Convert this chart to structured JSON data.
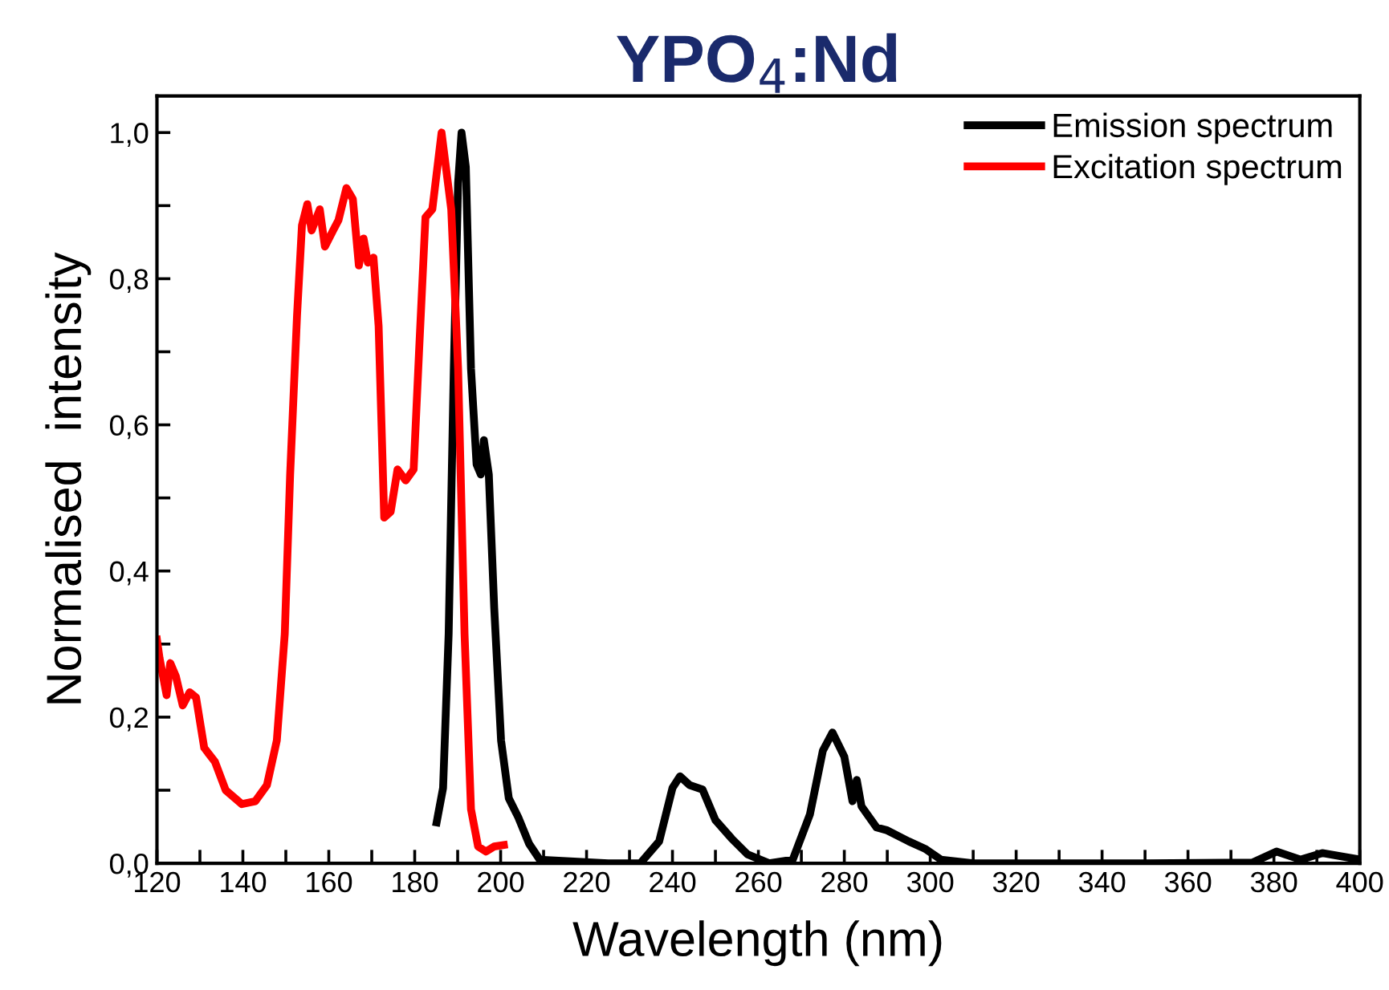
{
  "chart_data": {
    "type": "line",
    "title": "YPO$_{4}$:Nd",
    "xlabel": "Wavelength (nm)",
    "ylabel": "Normalised  intensity",
    "xlim": [
      120,
      400
    ],
    "xticks": [
      120,
      {
        "value": 130,
        "label": null
      },
      140,
      {
        "value": 150,
        "label": null
      },
      160,
      {
        "value": 170,
        "label": null
      },
      180,
      {
        "value": 190,
        "label": null
      },
      200,
      {
        "value": 210,
        "label": null
      },
      220,
      {
        "value": 230,
        "label": null
      },
      240,
      {
        "value": 250,
        "label": null
      },
      260,
      {
        "value": 270,
        "label": null
      },
      280,
      {
        "value": 290,
        "label": null
      },
      300,
      {
        "value": 310,
        "label": null
      },
      320,
      {
        "value": 330,
        "label": null
      },
      340,
      {
        "value": 350,
        "label": null
      },
      360,
      {
        "value": 370,
        "label": null
      },
      380,
      {
        "value": 390,
        "label": null
      },
      400
    ],
    "ylim": [
      0,
      1.05
    ],
    "yticks": [
      {
        "value": 0,
        "label": "0,0"
      },
      {
        "value": 0.1,
        "label": null
      },
      {
        "value": 0.2,
        "label": "0,2"
      },
      {
        "value": 0.3,
        "label": null
      },
      {
        "value": 0.4,
        "label": "0,4"
      },
      {
        "value": 0.5,
        "label": null
      },
      {
        "value": 0.6,
        "label": "0,6"
      },
      {
        "value": 0.7,
        "label": null
      },
      {
        "value": 0.8,
        "label": "0,8"
      },
      {
        "value": 0.9,
        "label": null
      },
      {
        "value": 1.0,
        "label": "1,0"
      }
    ],
    "grid": false,
    "legend": "top right",
    "marker": "none",
    "line_style": "solid",
    "series": [
      {
        "name": "Emission spectrum",
        "color": "#000000",
        "x": [
          185.1,
          186.6,
          187.9,
          189.1,
          190.1,
          190.9,
          191.9,
          193.1,
          194.4,
          195.4,
          196.1,
          197.25,
          198.5,
          200.1,
          201.9,
          204.1,
          206.6,
          209.1,
          225,
          232.5,
          236.9,
          240,
          241.75,
          244,
          247,
          250,
          253.75,
          257.5,
          262.5,
          268,
          272,
          275,
          277.25,
          280,
          281.9,
          282.9,
          284,
          287.5,
          290,
          295,
          298.75,
          302.5,
          310,
          325,
          350,
          375,
          380.6,
          386.25,
          391.25,
          400
        ],
        "values": [
          0.056,
          0.103,
          0.314,
          0.677,
          0.931,
          1.0,
          0.953,
          0.677,
          0.546,
          0.532,
          0.579,
          0.532,
          0.35,
          0.168,
          0.089,
          0.063,
          0.027,
          0.005,
          0,
          0,
          0.03,
          0.103,
          0.119,
          0.107,
          0.101,
          0.059,
          0.034,
          0.012,
          0,
          0.005,
          0.067,
          0.154,
          0.179,
          0.146,
          0.085,
          0.114,
          0.078,
          0.049,
          0.045,
          0.03,
          0.02,
          0.005,
          0,
          0,
          0,
          0.001,
          0.016,
          0.005,
          0.014,
          0.005
        ]
      },
      {
        "name": "Excitation spectrum",
        "color": "#ff0000",
        "x": [
          120,
          120.6,
          122.25,
          123.1,
          124.4,
          126,
          127.6,
          129.1,
          131,
          133.5,
          136,
          139.75,
          142.9,
          145.6,
          147.9,
          149.75,
          151,
          152.6,
          153.75,
          155,
          156,
          157.9,
          159.1,
          161,
          162.25,
          164.1,
          165.6,
          167,
          168.1,
          169.1,
          170.4,
          171.6,
          172.9,
          174.4,
          176,
          177.9,
          179.75,
          181,
          182.5,
          184.1,
          186.25,
          188.5,
          190.1,
          191.6,
          193.1,
          194.75,
          196.6,
          198.5,
          200.75
        ],
        "values": [
          0.306,
          0.281,
          0.23,
          0.274,
          0.256,
          0.216,
          0.234,
          0.227,
          0.158,
          0.139,
          0.1,
          0.081,
          0.085,
          0.107,
          0.168,
          0.314,
          0.532,
          0.749,
          0.873,
          0.902,
          0.866,
          0.895,
          0.844,
          0.866,
          0.88,
          0.924,
          0.909,
          0.818,
          0.855,
          0.822,
          0.829,
          0.735,
          0.473,
          0.481,
          0.539,
          0.524,
          0.539,
          0.699,
          0.884,
          0.895,
          1.0,
          0.895,
          0.677,
          0.314,
          0.074,
          0.023,
          0.016,
          0.023,
          0.025
        ]
      }
    ]
  }
}
